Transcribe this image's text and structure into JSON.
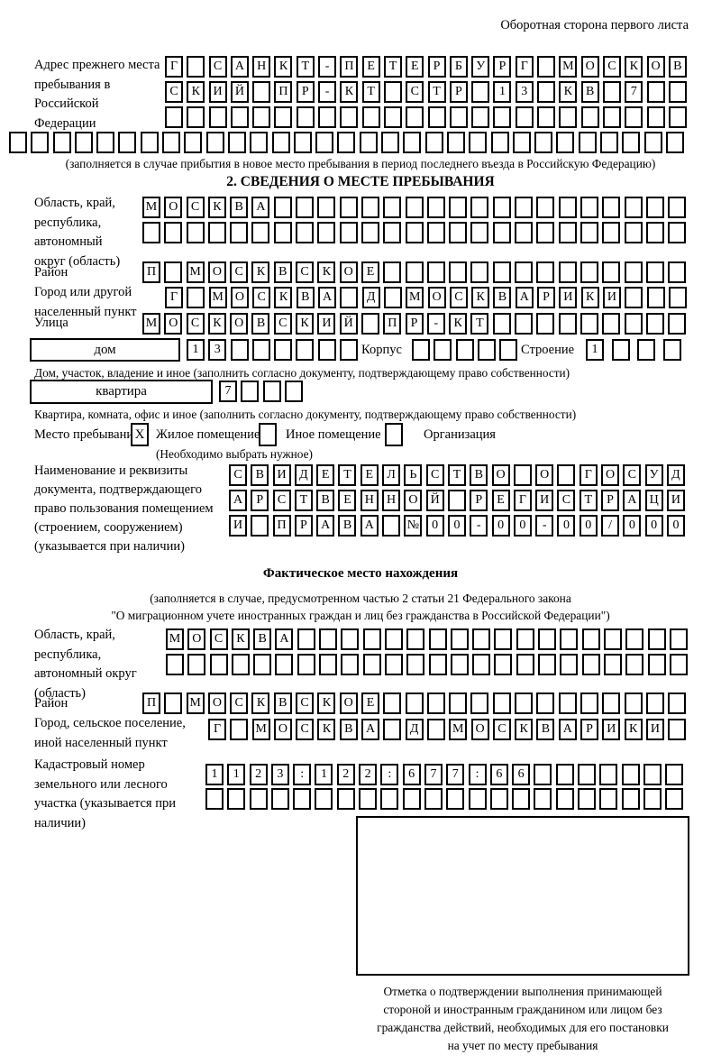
{
  "header": {
    "note": "Оборотная сторона первого листа"
  },
  "prev_address": {
    "label": "Адрес прежнего места пребывания в Российской Федерации",
    "rows": [
      {
        "text": "Г САНКТ-ПЕТЕРБУРГ МОСКОВ",
        "len": 24
      },
      {
        "text": "СКИЙ ПР-КТ СТР 13 КВ 7",
        "len": 24
      },
      {
        "text": "",
        "len": 24
      },
      {
        "text": "",
        "len": 31
      }
    ],
    "note": "(заполняется в случае прибытия в новое место пребывания в период последнего въезда в Российскую Федерацию)"
  },
  "stay": {
    "title": "2. СВЕДЕНИЯ О МЕСТЕ ПРЕБЫВАНИЯ",
    "oblast": {
      "label": "Область, край, республика, автономный округ (область)",
      "rows": [
        {
          "text": "МОСКВА",
          "len": 25
        },
        {
          "text": "",
          "len": 25
        }
      ]
    },
    "raion": {
      "label": "Район",
      "row": {
        "text": "П МОСКВСКОЕ",
        "len": 25
      }
    },
    "city": {
      "label": "Город или другой населенный пункт",
      "row": {
        "text": "Г МОСКВА Д МОСКВАРИКИ",
        "len": 24
      }
    },
    "street": {
      "label": "Улица",
      "row": {
        "text": "МОСКОВСКИЙ ПР-КТ",
        "len": 25
      }
    },
    "house": {
      "box_label": "дом",
      "cells": {
        "text": "13",
        "len": 8
      }
    },
    "korpus": {
      "label": "Корпус",
      "cells": {
        "text": "",
        "len": 5
      }
    },
    "stroenie": {
      "label": "Строение",
      "cells": {
        "text": "1",
        "len": 4
      }
    },
    "house_caption": "Дом, участок, владение и иное (заполнить согласно документу, подтверждающему право собственности)",
    "apartment": {
      "box_label": "квартира",
      "cells": {
        "text": "7",
        "len": 4
      }
    },
    "apartment_caption": "Квартира, комната, офис и иное (заполнить согласно документу, подтверждающему право собственности)",
    "type": {
      "label": "Место пребывания:",
      "options": [
        {
          "label": "Жилое помещение",
          "checked": "X"
        },
        {
          "label": "Иное помещение",
          "checked": ""
        },
        {
          "label": "Организация",
          "checked": ""
        }
      ],
      "note": "(Необходимо выбрать нужное)"
    },
    "doc": {
      "label": "Наименование и реквизиты документа, подтверждающего право пользования помещением (строением, сооружением) (указывается при наличии)",
      "rows": [
        {
          "text": "СВИДЕТЕЛЬСТВО О ГОСУД",
          "len": 21
        },
        {
          "text": "АРСТВЕННОЙ РЕГИСТРАЦИ",
          "len": 21
        },
        {
          "text": "И ПРАВА №00-00-00/000",
          "len": 21
        }
      ]
    }
  },
  "actual": {
    "title": "Фактическое место нахождения",
    "note_lines": [
      "(заполняется в случае, предусмотренном частью 2 статьи 21 Федерального закона",
      "\"О миграционном учете иностранных граждан и лиц без гражданства в Российской Федерации\")"
    ],
    "oblast": {
      "label": "Область, край, республика, автономный округ (область)",
      "rows": [
        {
          "text": "МОСКВА",
          "len": 24
        },
        {
          "text": "",
          "len": 24
        }
      ]
    },
    "raion": {
      "label": "Район",
      "row": {
        "text": "П МОСКВСКОЕ",
        "len": 25
      }
    },
    "city": {
      "label": "Город, сельское поселение, иной населенный пункт",
      "row": {
        "text": "Г МОСКВА Д МОСКВАРИКИ",
        "len": 22
      }
    },
    "cadastre": {
      "label": "Кадастровый номер земельного или лесного участка (указывается при наличии)",
      "rows": [
        {
          "text": "1123:122:677:66",
          "len": 22
        },
        {
          "text": "",
          "len": 22
        }
      ]
    },
    "mark_caption_lines": [
      "Отметка о подтверждении выполнения принимающей",
      "стороной и иностранным гражданином или лицом без",
      "гражданства действий, необходимых для его постановки",
      "на учет по месту пребывания"
    ]
  }
}
